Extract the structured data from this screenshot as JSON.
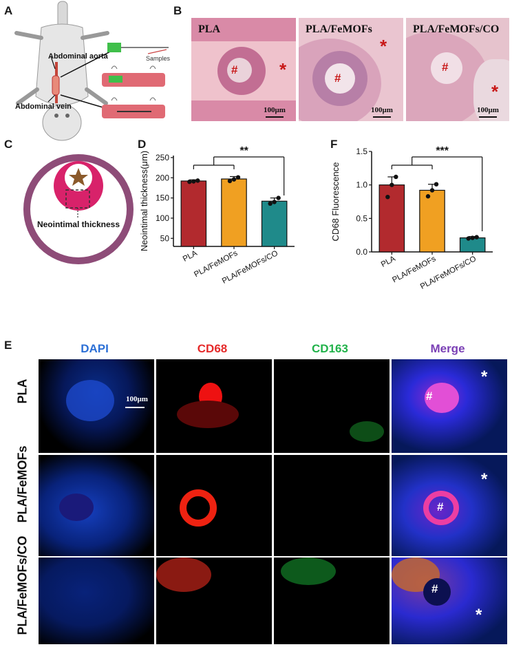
{
  "panels": {
    "A": "A",
    "B": "B",
    "C": "C",
    "D": "D",
    "E": "E",
    "F": "F"
  },
  "schematic_a": {
    "aorta": "Abdominal aorta",
    "vein": "Abdominal vein",
    "samples": "Samples"
  },
  "schematic_c": {
    "label": "Neointimal thickness"
  },
  "histology": {
    "titles": [
      "PLA",
      "PLA/FeMOFs",
      "PLA/FeMOFs/CO"
    ],
    "scale": "100μm",
    "hash": "#",
    "star": "*"
  },
  "charts": [
    {
      "panel": "D",
      "type": "bar",
      "ylabel": "Neointimal thickness(μm)",
      "yticks": [
        "50",
        "100",
        "150",
        "200",
        "250"
      ],
      "ylim": [
        30,
        255
      ],
      "categories": [
        "PLA",
        "PLA/FeMOFs",
        "PLA/FeMOFs/CO"
      ],
      "values": [
        192,
        197,
        142
      ],
      "errors": [
        3,
        6,
        8
      ],
      "points": [
        [
          190,
          191,
          193
        ],
        [
          192,
          196,
          201
        ],
        [
          136,
          140,
          150
        ]
      ],
      "colors": [
        "#b22a2e",
        "#f0a022",
        "#1f8a8a"
      ],
      "significance": "**"
    },
    {
      "panel": "F",
      "type": "bar",
      "ylabel": "CD68 Fluorescence",
      "yticks": [
        "0.0",
        "0.5",
        "1.0",
        "1.5"
      ],
      "ylim": [
        0,
        1.5
      ],
      "categories": [
        "PLA",
        "PLA/FeMOFs",
        "PLA/FeMOFs/CO"
      ],
      "values": [
        1.0,
        0.92,
        0.21
      ],
      "errors": [
        0.12,
        0.09,
        0.02
      ],
      "points": [
        [
          0.82,
          1.0,
          1.12
        ],
        [
          0.83,
          0.92,
          1.01
        ],
        [
          0.2,
          0.21,
          0.22
        ]
      ],
      "colors": [
        "#b22a2e",
        "#f0a022",
        "#1f8a8a"
      ],
      "significance": "***"
    }
  ],
  "chart_data": [
    {
      "type": "bar",
      "categories": [
        "PLA",
        "PLA/FeMOFs",
        "PLA/FeMOFs/CO"
      ],
      "values": [
        192,
        197,
        142
      ],
      "ylabel": "Neointimal thickness(μm)",
      "ylim": [
        30,
        255
      ]
    },
    {
      "type": "bar",
      "categories": [
        "PLA",
        "PLA/FeMOFs",
        "PLA/FeMOFs/CO"
      ],
      "values": [
        1.0,
        0.92,
        0.21
      ],
      "ylabel": "CD68 Fluorescence",
      "ylim": [
        0,
        1.5
      ]
    }
  ],
  "fluorescence": {
    "columns": [
      "DAPI",
      "CD68",
      "CD163",
      "Merge"
    ],
    "column_colors": [
      "#2b6fd6",
      "#e52a2a",
      "#21b24a",
      "#7a3fb5"
    ],
    "rows": [
      "PLA",
      "PLA/FeMOFs",
      "PLA/FeMOFs/CO"
    ],
    "scale": "100μm",
    "hash": "#",
    "star": "*"
  }
}
